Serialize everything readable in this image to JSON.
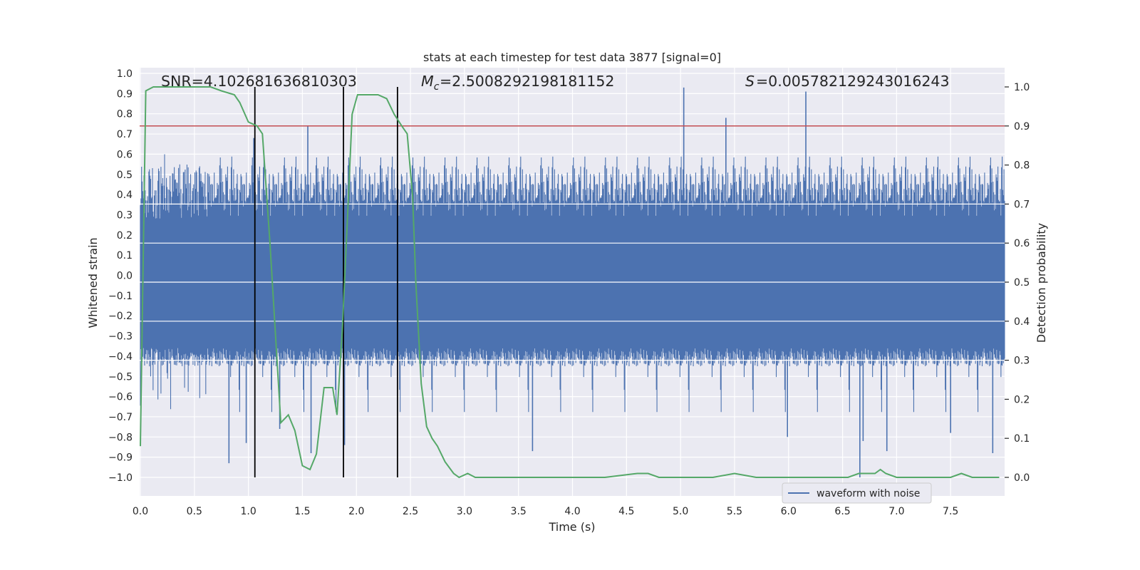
{
  "chart_data": {
    "type": "line",
    "title": "stats at each timestep for test data 3877 [signal=0]",
    "xlabel": "Time (s)",
    "ylabel": "Whitened strain",
    "y2label": "Detection probability",
    "xlim": [
      0.0,
      8.0
    ],
    "ylim": [
      -1.1,
      1.05
    ],
    "y2lim": [
      -0.05,
      1.035
    ],
    "x_ticks": [
      0.0,
      0.5,
      1.0,
      1.5,
      2.0,
      2.5,
      3.0,
      3.5,
      4.0,
      4.5,
      5.0,
      5.5,
      6.0,
      6.5,
      7.0,
      7.5
    ],
    "x_tick_labels": [
      "0.0",
      "0.5",
      "1.0",
      "1.5",
      "2.0",
      "2.5",
      "3.0",
      "3.5",
      "4.0",
      "4.5",
      "5.0",
      "5.5",
      "6.0",
      "6.5",
      "7.0",
      "7.5"
    ],
    "y_ticks": [
      1.0,
      0.9,
      0.8,
      0.7,
      0.6,
      0.5,
      0.4,
      0.3,
      0.2,
      0.1,
      0.0,
      -0.1,
      -0.2,
      -0.3,
      -0.4,
      -0.5,
      -0.6,
      -0.7,
      -0.8,
      -0.9,
      -1.0
    ],
    "y_tick_labels": [
      "1.0",
      "0.9",
      "0.8",
      "0.7",
      "0.6",
      "0.5",
      "0.4",
      "0.3",
      "0.2",
      "0.1",
      "0.0",
      "−0.1",
      "−0.2",
      "−0.3",
      "−0.4",
      "−0.5",
      "−0.6",
      "−0.7",
      "−0.8",
      "−0.9",
      "−1.0"
    ],
    "y2_ticks": [
      1.0,
      0.9,
      0.8,
      0.7,
      0.6,
      0.5,
      0.4,
      0.3,
      0.2,
      0.1,
      0.0
    ],
    "y2_tick_labels": [
      "1.0",
      "0.9",
      "0.8",
      "0.7",
      "0.6",
      "0.5",
      "0.4",
      "0.3",
      "0.2",
      "0.1",
      "0.0"
    ],
    "annotations": [
      {
        "prefix": "SNR",
        "text": "SNR=4.102681636810303"
      },
      {
        "prefix": "Mc",
        "text": "=2.5008292198181152"
      },
      {
        "prefix": "S",
        "text": "=0.005782129243016243"
      }
    ],
    "waveform": {
      "name": "waveform with noise",
      "color": "#4c72b0",
      "envelope_upper": 0.55,
      "envelope_lower": -0.45,
      "spikes": [
        {
          "x": 0.82,
          "y": -0.93
        },
        {
          "x": 0.98,
          "y": -0.83
        },
        {
          "x": 1.05,
          "y": 0.68
        },
        {
          "x": 1.29,
          "y": -0.76
        },
        {
          "x": 1.55,
          "y": 0.74
        },
        {
          "x": 1.58,
          "y": -0.88
        },
        {
          "x": 1.89,
          "y": -0.84
        },
        {
          "x": 3.63,
          "y": -0.87
        },
        {
          "x": 5.03,
          "y": 0.93
        },
        {
          "x": 5.42,
          "y": 0.78
        },
        {
          "x": 5.99,
          "y": -0.8
        },
        {
          "x": 6.16,
          "y": 0.91
        },
        {
          "x": 6.66,
          "y": -1.0
        },
        {
          "x": 6.69,
          "y": -0.82
        },
        {
          "x": 6.91,
          "y": -0.87
        },
        {
          "x": 7.5,
          "y": -0.78
        },
        {
          "x": 7.89,
          "y": -0.88
        }
      ]
    },
    "detection_probability": {
      "color": "#55a868",
      "x": [
        0.0,
        0.05,
        0.12,
        0.2,
        0.35,
        0.5,
        0.65,
        0.75,
        0.87,
        0.92,
        1.0,
        1.08,
        1.13,
        1.2,
        1.3,
        1.37,
        1.43,
        1.5,
        1.57,
        1.63,
        1.7,
        1.78,
        1.82,
        1.87,
        1.91,
        1.96,
        2.01,
        2.1,
        2.2,
        2.28,
        2.35,
        2.42,
        2.47,
        2.52,
        2.55,
        2.6,
        2.65,
        2.7,
        2.75,
        2.82,
        2.9,
        2.95,
        3.03,
        3.1,
        3.2,
        3.5,
        3.8,
        4.0,
        4.3,
        4.6,
        4.7,
        4.8,
        5.0,
        5.3,
        5.5,
        5.7,
        5.9,
        6.1,
        6.4,
        6.55,
        6.65,
        6.75,
        6.8,
        6.85,
        6.9,
        7.0,
        7.3,
        7.5,
        7.6,
        7.7,
        7.95
      ],
      "y": [
        0.08,
        0.99,
        1.0,
        1.0,
        1.0,
        1.0,
        1.0,
        0.99,
        0.98,
        0.96,
        0.91,
        0.9,
        0.88,
        0.6,
        0.14,
        0.16,
        0.12,
        0.03,
        0.02,
        0.06,
        0.23,
        0.23,
        0.16,
        0.38,
        0.62,
        0.93,
        0.98,
        0.98,
        0.98,
        0.97,
        0.93,
        0.9,
        0.88,
        0.72,
        0.5,
        0.24,
        0.13,
        0.1,
        0.08,
        0.04,
        0.01,
        0.0,
        0.01,
        0.0,
        0.0,
        0.0,
        0.0,
        0.0,
        0.0,
        0.01,
        0.01,
        0.0,
        0.0,
        0.0,
        0.01,
        0.0,
        0.0,
        0.0,
        0.0,
        0.0,
        0.01,
        0.01,
        0.01,
        0.02,
        0.01,
        0.0,
        0.0,
        0.0,
        0.01,
        0.0,
        0.0
      ]
    },
    "threshold": {
      "y2": 0.9,
      "color": "#c44e52"
    },
    "vlines": [
      {
        "x": 1.06,
        "y2_top": 1.0,
        "y2_bottom": 0.0
      },
      {
        "x": 1.88,
        "y2_top": 1.0,
        "y2_bottom": 0.0
      },
      {
        "x": 2.38,
        "y2_top": 1.0,
        "y2_bottom": 0.0
      }
    ],
    "legend": {
      "label": "waveform with noise",
      "placement": "lower-right"
    }
  }
}
